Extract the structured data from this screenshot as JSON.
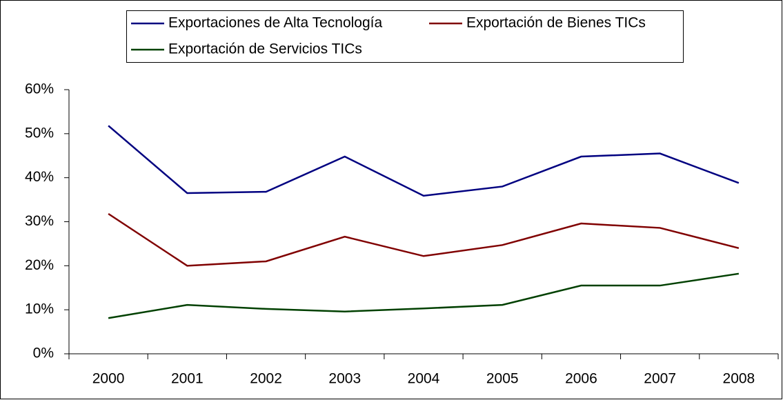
{
  "chart_data": {
    "type": "line",
    "categories": [
      "2000",
      "2001",
      "2002",
      "2003",
      "2004",
      "2005",
      "2006",
      "2007",
      "2008"
    ],
    "series": [
      {
        "name": "Exportaciones de Alta Tecnología",
        "color": "#000080",
        "values": [
          51.8,
          36.5,
          36.8,
          44.8,
          35.9,
          38.0,
          44.8,
          45.5,
          38.8
        ]
      },
      {
        "name": "Exportación de Bienes TICs",
        "color": "#800000",
        "values": [
          31.8,
          20.0,
          21.0,
          26.6,
          22.2,
          24.7,
          29.6,
          28.6,
          24.0
        ]
      },
      {
        "name": "Exportación de Servicios TICs",
        "color": "#004000",
        "values": [
          8.1,
          11.1,
          10.2,
          9.6,
          10.3,
          11.1,
          15.5,
          15.5,
          18.2
        ]
      }
    ],
    "ylim": [
      0,
      60
    ],
    "yticks": [
      {
        "value": 0,
        "label": "0%"
      },
      {
        "value": 10,
        "label": "10%"
      },
      {
        "value": 20,
        "label": "20%"
      },
      {
        "value": 30,
        "label": "30%"
      },
      {
        "value": 40,
        "label": "40%"
      },
      {
        "value": 50,
        "label": "50%"
      },
      {
        "value": 60,
        "label": "60%"
      }
    ],
    "legend": "top",
    "grid": false
  }
}
